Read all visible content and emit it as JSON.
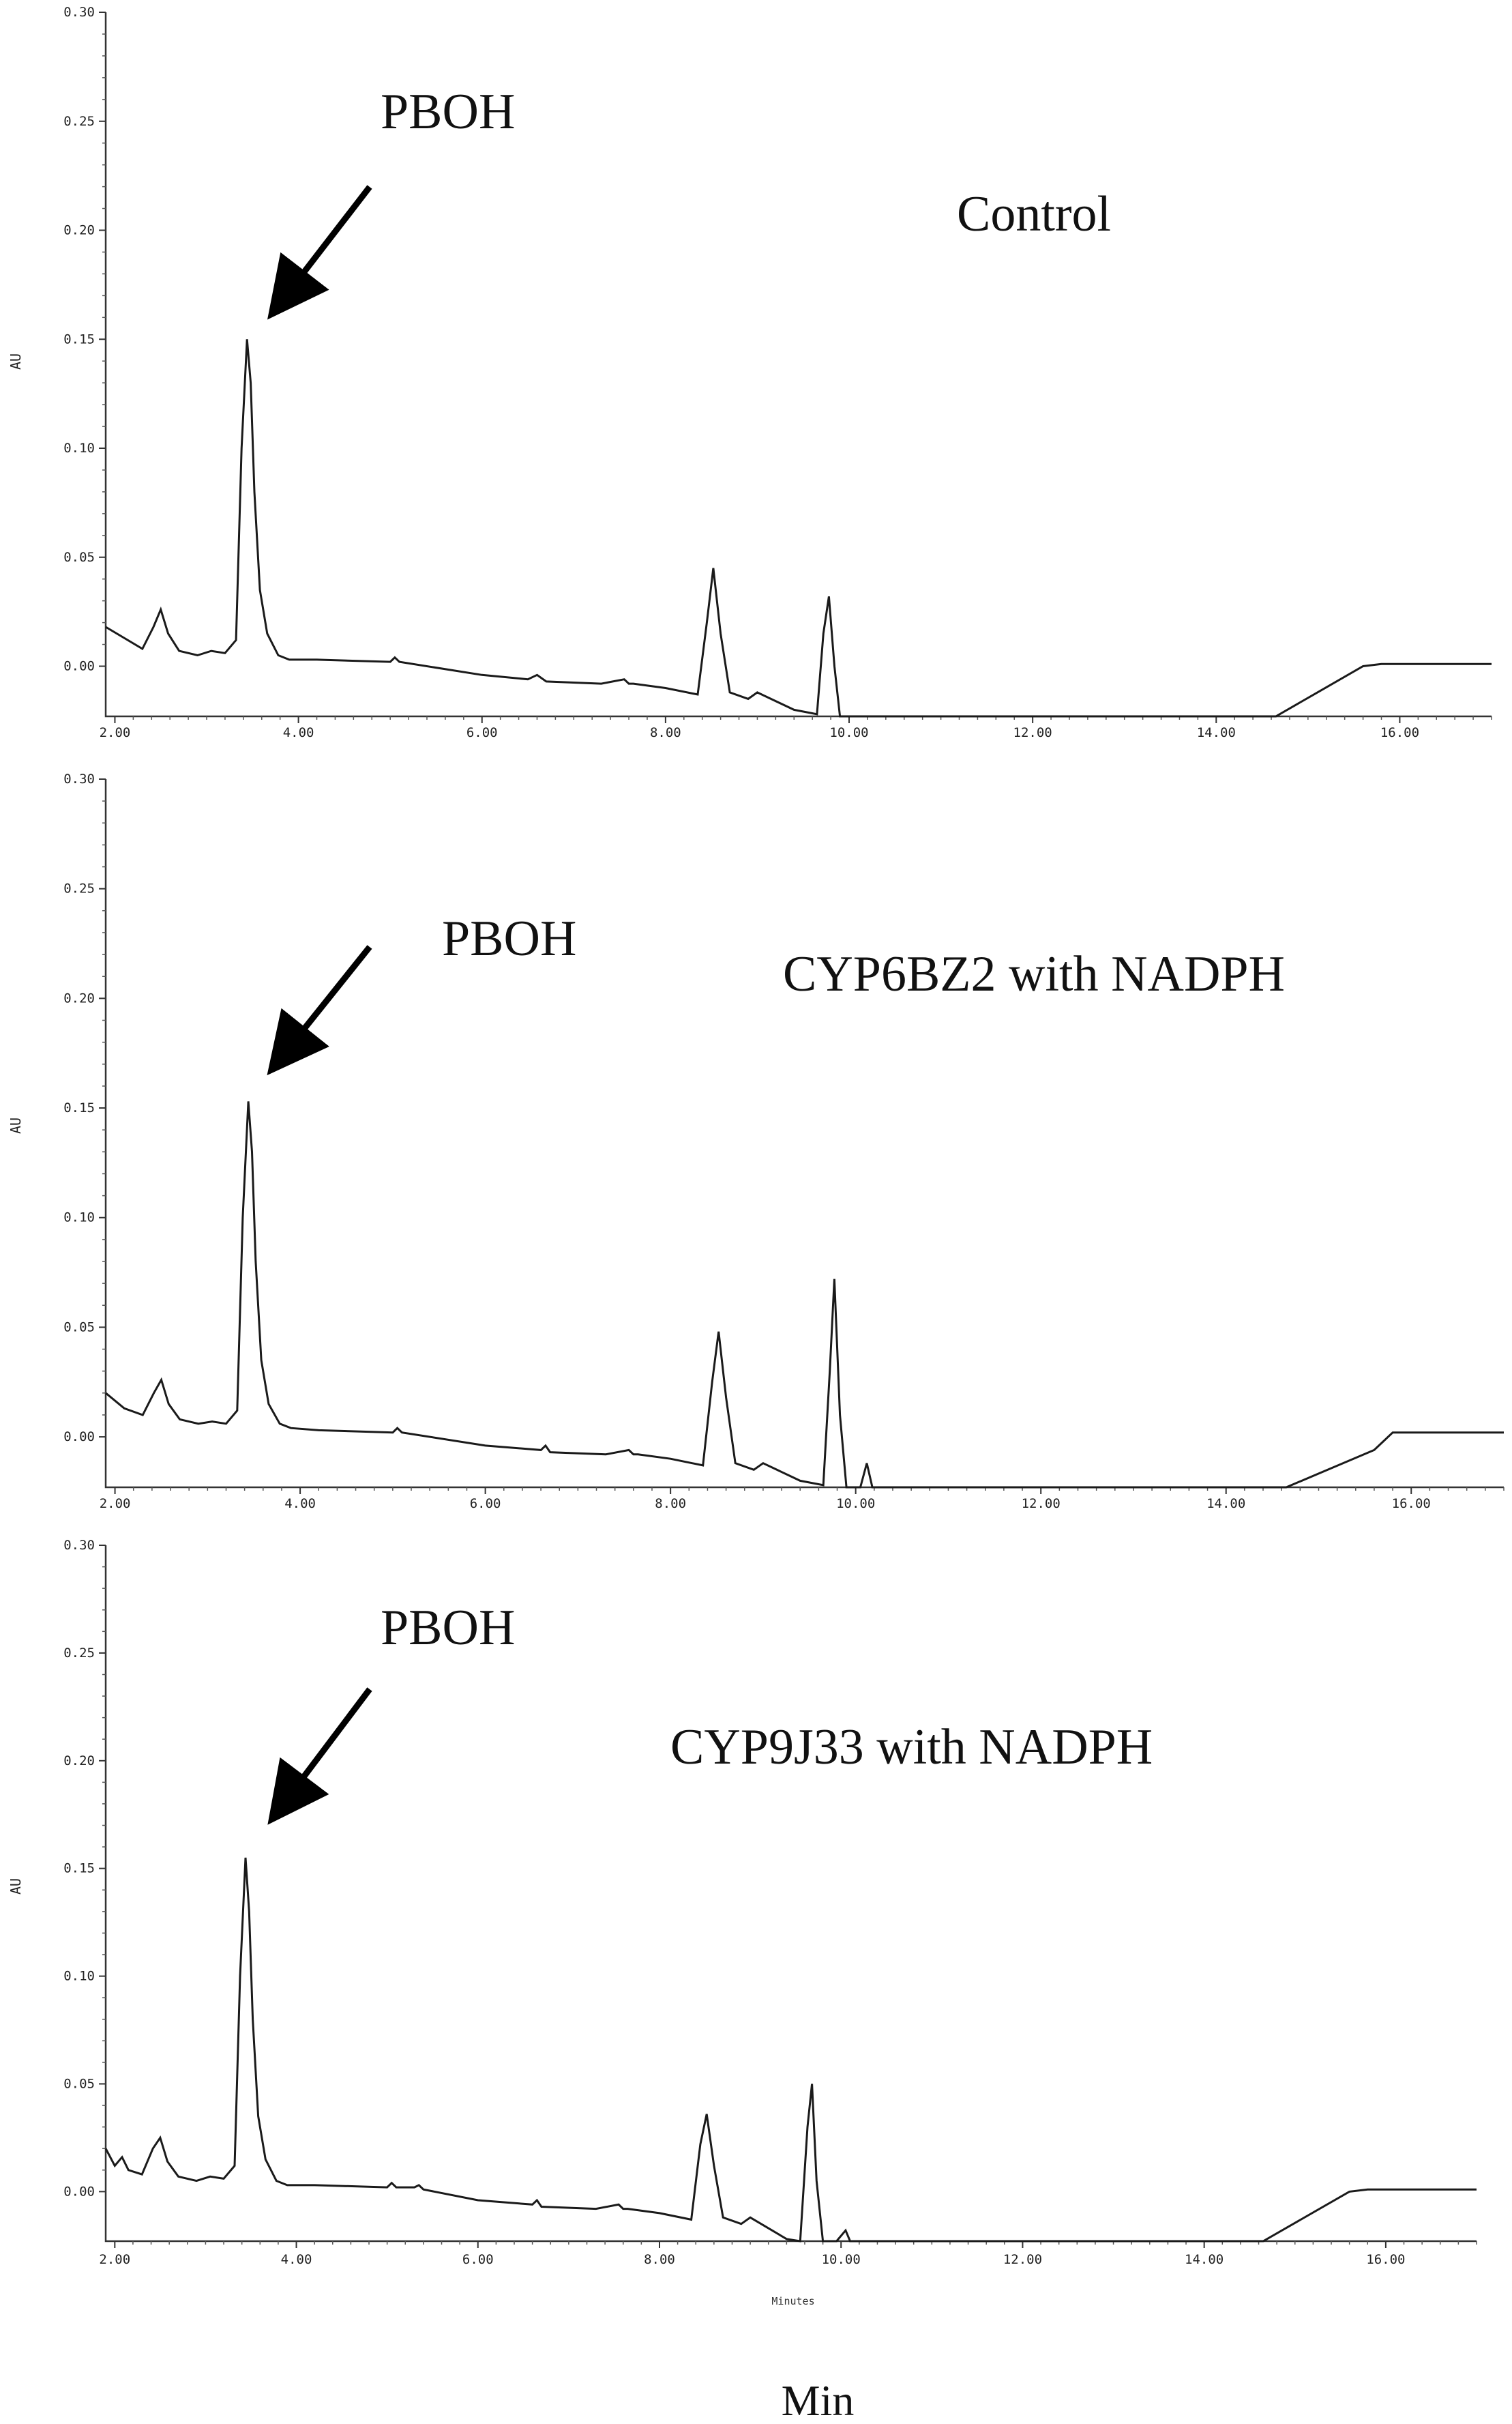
{
  "chart_data": [
    {
      "type": "line",
      "panel": "top",
      "ylabel": "AU",
      "xlim": [
        1.9,
        17.0
      ],
      "ylim": [
        -0.023,
        0.3
      ],
      "x_ticks": [
        "2.00",
        "4.00",
        "6.00",
        "8.00",
        "10.00",
        "12.00",
        "14.00",
        "16.00"
      ],
      "y_ticks": [
        "0.00",
        "0.05",
        "0.10",
        "0.15",
        "0.20",
        "0.25",
        "0.30"
      ],
      "annotations": [
        "PBOH",
        "Control"
      ],
      "series": [
        {
          "x": [
            1.9,
            2.1,
            2.3,
            2.42,
            2.5,
            2.58,
            2.7,
            2.9,
            3.05,
            3.2,
            3.32,
            3.38,
            3.44,
            3.48,
            3.52,
            3.58,
            3.66,
            3.78,
            3.9,
            4.2,
            5.0,
            5.05,
            5.1,
            6.0,
            6.5,
            6.6,
            6.7,
            7.3,
            7.55,
            7.6,
            7.65,
            8.0,
            8.35,
            8.45,
            8.52,
            8.6,
            8.7,
            8.9,
            9.0,
            9.4,
            9.65,
            9.72,
            9.78,
            9.84,
            9.9,
            10.05,
            11.0,
            14.65,
            15.6,
            15.8,
            17.0
          ],
          "values": [
            0.018,
            0.013,
            0.008,
            0.018,
            0.026,
            0.015,
            0.007,
            0.005,
            0.007,
            0.006,
            0.012,
            0.1,
            0.15,
            0.13,
            0.08,
            0.035,
            0.015,
            0.005,
            0.003,
            0.003,
            0.002,
            0.004,
            0.002,
            -0.004,
            -0.006,
            -0.004,
            -0.007,
            -0.008,
            -0.006,
            -0.008,
            -0.008,
            -0.01,
            -0.013,
            0.02,
            0.045,
            0.015,
            -0.012,
            -0.015,
            -0.012,
            -0.02,
            -0.022,
            0.015,
            0.032,
            0.0,
            -0.023,
            -0.024,
            -0.024,
            -0.024,
            0.0,
            0.001,
            0.001
          ]
        }
      ]
    },
    {
      "type": "line",
      "panel": "middle",
      "ylabel": "AU",
      "xlim": [
        1.9,
        17.0
      ],
      "ylim": [
        -0.023,
        0.3
      ],
      "x_ticks": [
        "2.00",
        "4.00",
        "6.00",
        "8.00",
        "10.00",
        "12.00",
        "14.00",
        "16.00"
      ],
      "y_ticks": [
        "0.00",
        "0.05",
        "0.10",
        "0.15",
        "0.20",
        "0.25",
        "0.30"
      ],
      "annotations": [
        "PBOH",
        "CYP6BZ2 with NADPH"
      ],
      "series": [
        {
          "x": [
            1.9,
            2.1,
            2.3,
            2.42,
            2.5,
            2.58,
            2.7,
            2.9,
            3.05,
            3.2,
            3.32,
            3.38,
            3.44,
            3.48,
            3.52,
            3.58,
            3.66,
            3.78,
            3.9,
            4.2,
            5.0,
            5.05,
            5.1,
            6.0,
            6.6,
            6.65,
            6.7,
            7.3,
            7.55,
            7.6,
            7.65,
            8.0,
            8.35,
            8.45,
            8.52,
            8.6,
            8.7,
            8.9,
            9.0,
            9.4,
            9.65,
            9.72,
            9.77,
            9.83,
            9.9,
            10.05,
            10.12,
            10.18,
            10.25,
            11.0,
            14.65,
            15.6,
            15.8,
            17.0
          ],
          "values": [
            0.02,
            0.013,
            0.01,
            0.02,
            0.026,
            0.015,
            0.008,
            0.006,
            0.007,
            0.006,
            0.012,
            0.1,
            0.153,
            0.13,
            0.08,
            0.035,
            0.015,
            0.006,
            0.004,
            0.003,
            0.002,
            0.004,
            0.002,
            -0.004,
            -0.006,
            -0.004,
            -0.007,
            -0.008,
            -0.006,
            -0.008,
            -0.008,
            -0.01,
            -0.013,
            0.025,
            0.048,
            0.018,
            -0.012,
            -0.015,
            -0.012,
            -0.02,
            -0.022,
            0.03,
            0.072,
            0.01,
            -0.024,
            -0.024,
            -0.012,
            -0.024,
            -0.024,
            -0.024,
            -0.024,
            -0.006,
            0.002,
            0.002
          ]
        }
      ]
    },
    {
      "type": "line",
      "panel": "bottom",
      "ylabel": "AU",
      "xlabel": "Min",
      "x_axis_text": "Minutes",
      "xlim": [
        1.9,
        17.0
      ],
      "ylim": [
        -0.023,
        0.3
      ],
      "x_ticks": [
        "2.00",
        "4.00",
        "6.00",
        "8.00",
        "10.00",
        "12.00",
        "14.00",
        "16.00"
      ],
      "y_ticks": [
        "0.00",
        "0.05",
        "0.10",
        "0.15",
        "0.20",
        "0.25",
        "0.30"
      ],
      "annotations": [
        "PBOH",
        "CYP9J33 with NADPH"
      ],
      "series": [
        {
          "x": [
            1.9,
            2.0,
            2.08,
            2.15,
            2.3,
            2.42,
            2.5,
            2.58,
            2.7,
            2.9,
            3.05,
            3.2,
            3.32,
            3.38,
            3.44,
            3.48,
            3.52,
            3.58,
            3.66,
            3.78,
            3.9,
            4.2,
            5.0,
            5.05,
            5.1,
            5.3,
            5.35,
            5.4,
            6.0,
            6.6,
            6.65,
            6.7,
            7.3,
            7.55,
            7.6,
            7.65,
            8.0,
            8.35,
            8.45,
            8.52,
            8.6,
            8.7,
            8.9,
            9.0,
            9.4,
            9.55,
            9.63,
            9.68,
            9.73,
            9.8,
            9.95,
            10.05,
            10.1,
            10.15,
            11.0,
            14.65,
            15.6,
            15.8,
            17.0
          ],
          "values": [
            0.02,
            0.012,
            0.016,
            0.01,
            0.008,
            0.02,
            0.025,
            0.014,
            0.007,
            0.005,
            0.007,
            0.006,
            0.012,
            0.1,
            0.155,
            0.13,
            0.08,
            0.035,
            0.015,
            0.005,
            0.003,
            0.003,
            0.002,
            0.004,
            0.002,
            0.002,
            0.003,
            0.001,
            -0.004,
            -0.006,
            -0.004,
            -0.007,
            -0.008,
            -0.006,
            -0.008,
            -0.008,
            -0.01,
            -0.013,
            0.022,
            0.036,
            0.012,
            -0.012,
            -0.015,
            -0.012,
            -0.022,
            -0.023,
            0.03,
            0.05,
            0.005,
            -0.023,
            -0.024,
            -0.018,
            -0.024,
            -0.024,
            -0.024,
            -0.024,
            0.0,
            0.001,
            0.001
          ]
        }
      ]
    }
  ]
}
